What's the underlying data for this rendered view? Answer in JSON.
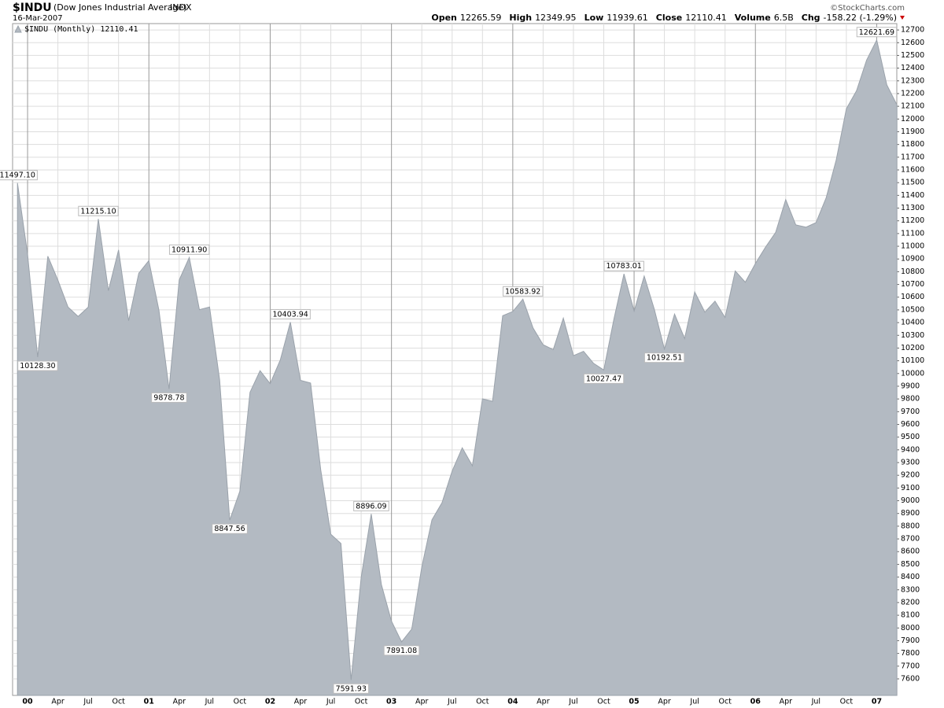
{
  "header": {
    "symbol": "$INDU",
    "name": "(Dow Jones Industrial Average)",
    "exchange": "INDX",
    "date": "16-Mar-2007",
    "source": "©StockCharts.com",
    "quote": [
      [
        "Open",
        "12265.59"
      ],
      [
        "High",
        "12349.95"
      ],
      [
        "Low",
        "11939.61"
      ],
      [
        "Close",
        "12110.41"
      ],
      [
        "Volume",
        "6.5B"
      ],
      [
        "Chg",
        "-158.22 (-1.29%)"
      ]
    ]
  },
  "chart_data": {
    "type": "area",
    "categories": [
      null,
      "00",
      null,
      null,
      "Apr",
      null,
      null,
      "Jul",
      null,
      null,
      "Oct",
      null,
      null,
      "01",
      null,
      null,
      "Apr",
      null,
      null,
      "Jul",
      null,
      null,
      "Oct",
      null,
      null,
      "02",
      null,
      null,
      "Apr",
      null,
      null,
      "Jul",
      null,
      null,
      "Oct",
      null,
      null,
      "03",
      null,
      null,
      "Apr",
      null,
      null,
      "Jul",
      null,
      null,
      "Oct",
      null,
      null,
      "04",
      null,
      null,
      "Apr",
      null,
      null,
      "Jul",
      null,
      null,
      "Oct",
      null,
      null,
      "05",
      null,
      null,
      "Apr",
      null,
      null,
      "Jul",
      null,
      null,
      "Oct",
      null,
      null,
      "06",
      null,
      null,
      "Apr",
      null,
      null,
      "Jul",
      null,
      null,
      "Oct",
      null,
      null,
      "07",
      null,
      null
    ],
    "series": [
      {
        "name": "$INDU (Monthly) 12110.41",
        "color": "#b3bac2",
        "line_color": "#9aa2ab",
        "values": [
          11497.1,
          10940,
          10128.3,
          10922,
          10734,
          10522,
          10448,
          10522,
          11215.1,
          10651,
          10971,
          10415,
          10788,
          10887,
          10495,
          9878.78,
          10735,
          10911.9,
          10502,
          10523,
          9950,
          8847.56,
          9075,
          9852,
          10022,
          9920,
          10106,
          10403.94,
          9946,
          9925,
          9243,
          8737,
          8664,
          7591.93,
          8397,
          8896.09,
          8342,
          8054,
          7891.08,
          7992,
          8480,
          8850,
          8985,
          9234,
          9416,
          9275,
          9801,
          9782,
          10454,
          10488,
          10583.92,
          10358,
          10226,
          10188,
          10435,
          10140,
          10174,
          10080,
          10027.47,
          10428,
          10783.01,
          10490,
          10766,
          10504,
          10192.51,
          10467,
          10275,
          10641,
          10482,
          10569,
          10440,
          10806,
          10718,
          10865,
          10993,
          11109,
          11367,
          11168,
          11150,
          11186,
          11381,
          11679,
          12081,
          12222,
          12463,
          12621.69,
          12269,
          12110.41
        ],
        "value_labels": [
          "11497.10",
          null,
          "10128.30",
          null,
          null,
          null,
          null,
          null,
          "11215.10",
          null,
          null,
          null,
          null,
          null,
          null,
          "9878.78",
          null,
          "10911.90",
          null,
          null,
          null,
          "8847.56",
          null,
          null,
          null,
          null,
          null,
          "10403.94",
          null,
          null,
          null,
          null,
          null,
          "7591.93",
          null,
          "8896.09",
          null,
          null,
          "7891.08",
          null,
          null,
          null,
          null,
          null,
          null,
          null,
          null,
          null,
          null,
          null,
          "10583.92",
          null,
          null,
          null,
          null,
          null,
          null,
          null,
          "10027.47",
          null,
          "10783.01",
          null,
          null,
          null,
          "10192.51",
          null,
          null,
          null,
          null,
          null,
          null,
          null,
          null,
          null,
          null,
          null,
          null,
          null,
          null,
          null,
          null,
          null,
          null,
          null,
          null,
          "12621.69",
          null,
          null
        ]
      }
    ],
    "ylim": [
      7470,
      12750
    ],
    "yticks": [
      7600,
      7700,
      7800,
      7900,
      8000,
      8100,
      8200,
      8300,
      8400,
      8500,
      8600,
      8700,
      8800,
      8900,
      9000,
      9100,
      9200,
      9300,
      9400,
      9500,
      9600,
      9700,
      9800,
      9900,
      10000,
      10100,
      10200,
      10300,
      10400,
      10500,
      10600,
      10700,
      10800,
      10900,
      11000,
      11100,
      11200,
      11300,
      11400,
      11500,
      11600,
      11700,
      11800,
      11900,
      12000,
      12100,
      12200,
      12300,
      12400,
      12500,
      12600,
      12700
    ],
    "grid": true
  }
}
